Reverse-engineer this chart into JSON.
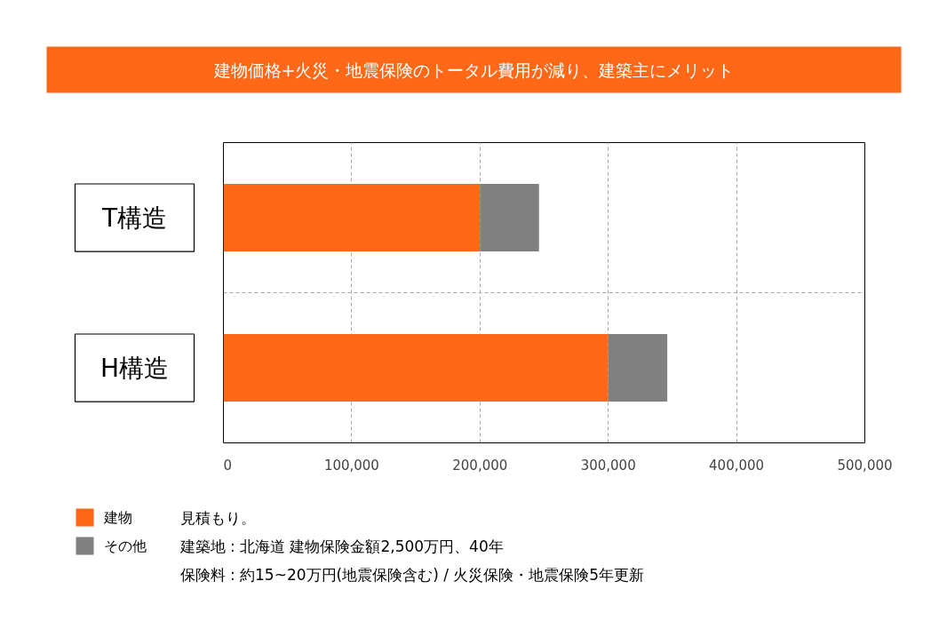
{
  "chart_data": {
    "type": "bar",
    "orientation": "horizontal",
    "stacked": true,
    "title": "建物価格+火災・地震保険のトータル費用が減り、建築主にメリット",
    "categories": [
      "T構造",
      "H構造"
    ],
    "series": [
      {
        "name": "建物",
        "color": "#ff6816",
        "values": [
          200000,
          300000
        ]
      },
      {
        "name": "その他",
        "color": "#808080",
        "values": [
          46000,
          46000
        ]
      }
    ],
    "xlim": [
      0,
      500000
    ],
    "xticks": [
      {
        "value": 0,
        "label": "0"
      },
      {
        "value": 100000,
        "label": "100,000"
      },
      {
        "value": 200000,
        "label": "200,000"
      },
      {
        "value": 300000,
        "label": "300,000"
      },
      {
        "value": 400000,
        "label": "400,000"
      },
      {
        "value": 500000,
        "label": "500,000"
      }
    ],
    "grid": true,
    "legend": "bottom left",
    "annotations": [
      "見積もり。",
      "建築地 : 北海道 建物保険金額2,500万円、40年",
      "保険料 : 約15~20万円(地震保険含む) / 火災保険・地震保険5年更新"
    ]
  }
}
